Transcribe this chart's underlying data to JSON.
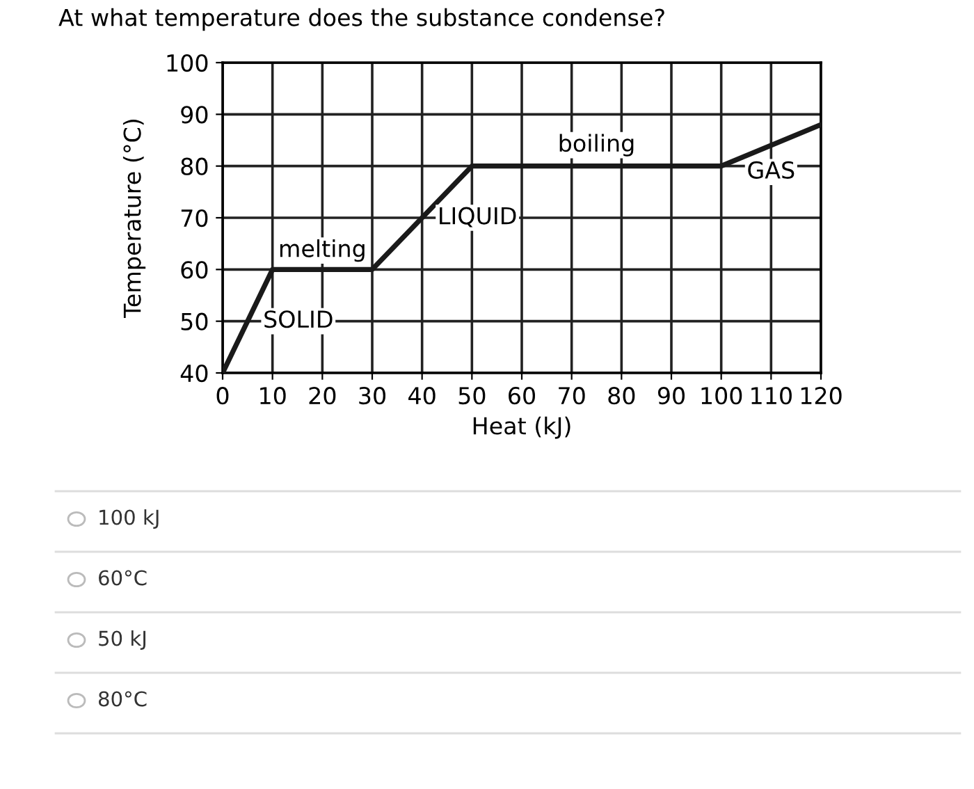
{
  "chart_data": {
    "type": "line",
    "title": "At what temperature does the substance condense?",
    "xlabel": "Heat (kJ)",
    "ylabel": "Temperature (°C)",
    "x": [
      0,
      10,
      30,
      50,
      100,
      120
    ],
    "series": [
      {
        "color": "#1a1a1a",
        "values": [
          40,
          60,
          60,
          80,
          80,
          88
        ]
      }
    ],
    "xlim": [
      0,
      120
    ],
    "ylim": [
      40,
      100
    ],
    "xticks": [
      0,
      10,
      20,
      30,
      40,
      50,
      60,
      70,
      80,
      90,
      100,
      110,
      120
    ],
    "yticks": [
      40,
      50,
      60,
      70,
      80,
      90,
      100
    ],
    "grid": true,
    "marker": "none",
    "line_style": "solid",
    "legend": false,
    "annotations": [
      {
        "text": "SOLID",
        "x": 5,
        "y": 50
      },
      {
        "text": "melting",
        "x": 20,
        "y": 60
      },
      {
        "text": "LIQUID",
        "x": 40,
        "y": 70
      },
      {
        "text": "boiling",
        "x": 75,
        "y": 80
      },
      {
        "text": "GAS",
        "x": 110,
        "y": 84
      },
      "100 kJ",
      "60°C",
      "50 kJ",
      "80°C"
    ]
  }
}
